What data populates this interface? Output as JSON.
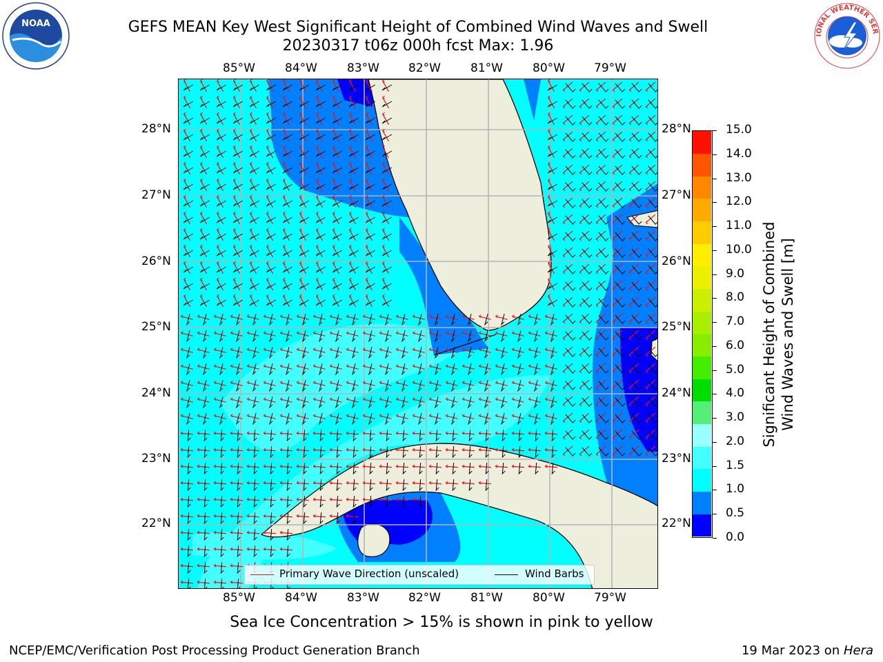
{
  "header": {
    "title_line1": "GEFS MEAN Key West Significant Height of Combined Wind Waves and Swell",
    "title_line2": "20230317 t06z 000h fcst   Max: 1.96"
  },
  "logos": {
    "left": {
      "name": "NOAA",
      "text": "NOAA"
    },
    "right": {
      "name": "National Weather Service",
      "text": "NATIONAL WEATHER SERVICE"
    }
  },
  "map": {
    "lon_labels": [
      "85°W",
      "84°W",
      "83°W",
      "82°W",
      "81°W",
      "80°W",
      "79°W"
    ],
    "lat_labels": [
      "28°N",
      "27°N",
      "26°N",
      "25°N",
      "24°N",
      "23°N",
      "22°N"
    ],
    "legend": {
      "wave_label": "Primary Wave Direction (unscaled)",
      "barb_label": "Wind Barbs",
      "wave_color": "#ee1111",
      "barb_color": "#000000"
    },
    "colors": {
      "ocean_1_1p5": "#00ffff",
      "ocean_1p5_2": "#44ffff",
      "ocean_2_3": "#99ffff",
      "ocean_0p5_1": "#0080ff",
      "ocean_0_0p5": "#0000ff",
      "land": "#eeeedd",
      "grid": "#b4b4b4"
    }
  },
  "colorbar": {
    "label_line1": "Significant Height of Combined",
    "label_line2": "Wind Waves and Swell [m]",
    "tick_labels": [
      "0.0",
      "0.5",
      "1.0",
      "1.5",
      "2.0",
      "3.0",
      "4.0",
      "5.0",
      "6.0",
      "7.0",
      "8.0",
      "9.0",
      "10.0",
      "11.0",
      "12.0",
      "13.0",
      "14.0",
      "15.0"
    ],
    "colors": [
      "#0000ff",
      "#0080ff",
      "#00ffff",
      "#44ffff",
      "#99ffff",
      "#55ee77",
      "#00dd00",
      "#44ee00",
      "#88ee00",
      "#aaee00",
      "#ccee00",
      "#eeee00",
      "#ffee00",
      "#ffcc00",
      "#ffaa00",
      "#ff8800",
      "#ff5500",
      "#ff1100"
    ]
  },
  "footer": {
    "note": "Sea Ice Concentration > 15% is shown in pink to yellow",
    "left": "NCEP/EMC/Verification Post Processing Product Generation Branch",
    "right_prefix": "19 Mar 2023 on ",
    "right_host": "Hera"
  }
}
